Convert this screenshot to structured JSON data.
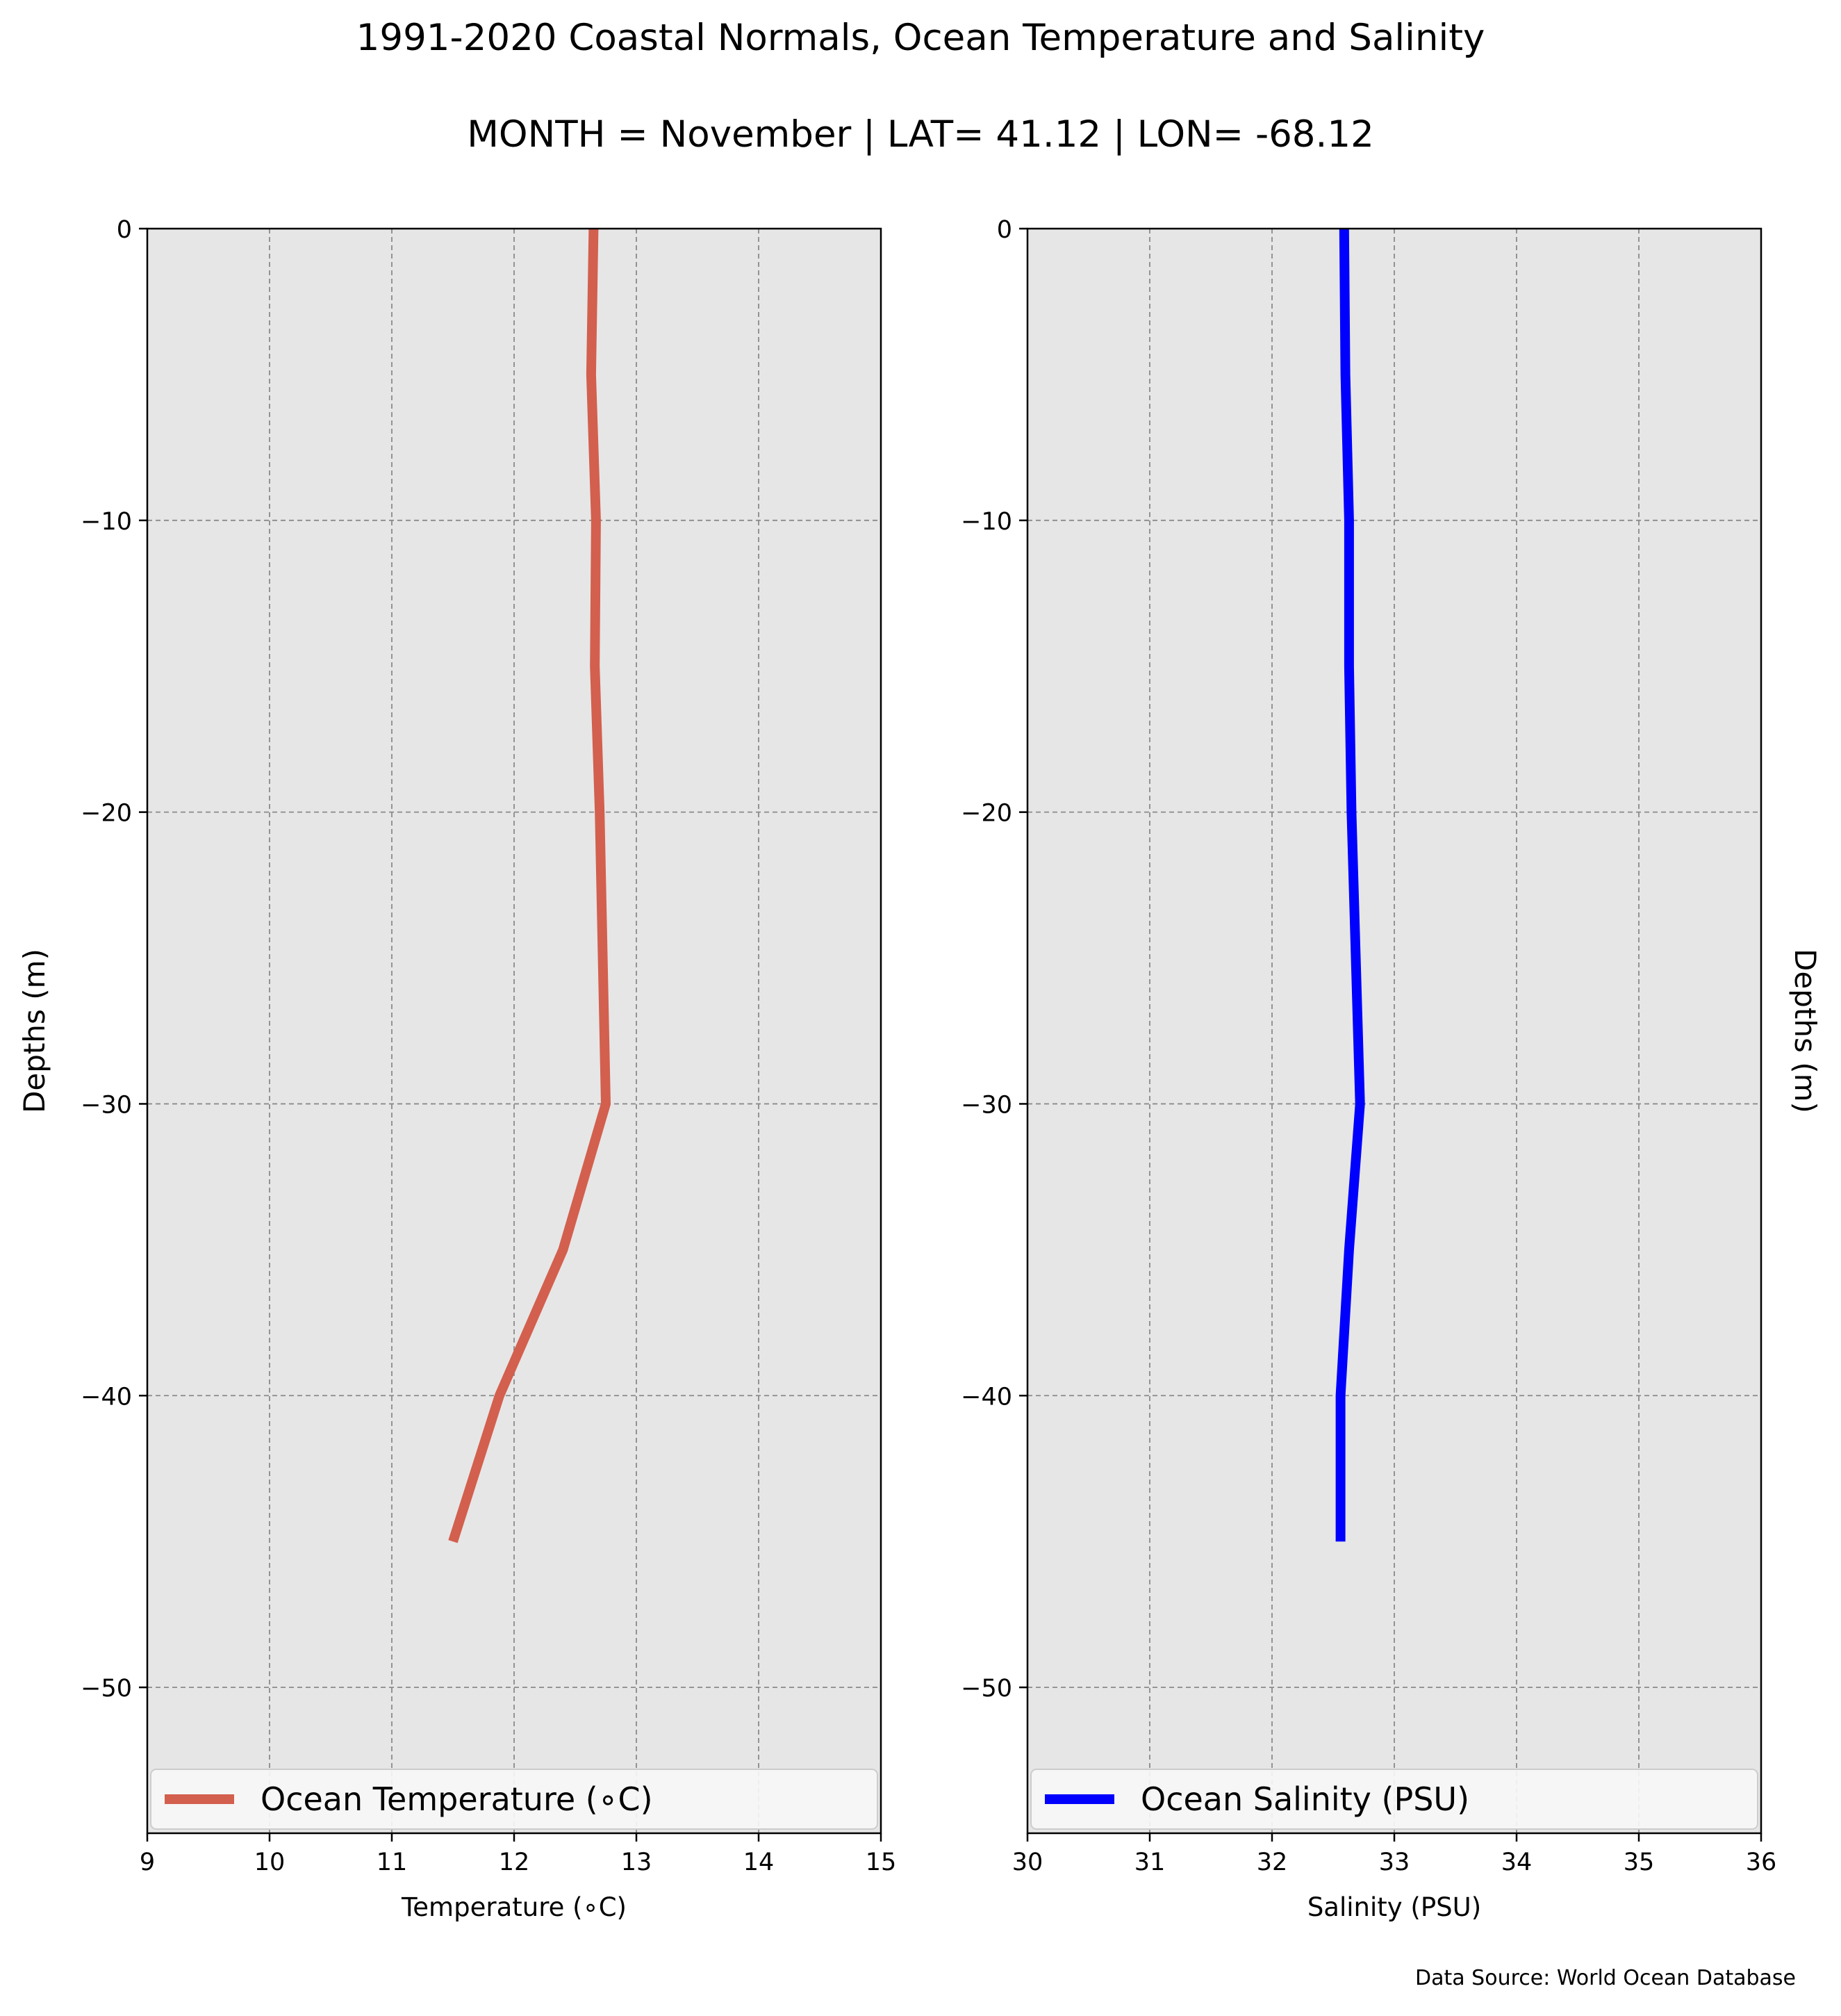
{
  "figure": {
    "title": "1991-2020 Coastal Normals, Ocean Temperature and Salinity",
    "subtitle": "MONTH = November | LAT= 41.12 | LON= -68.12",
    "source": "Data Source: World Ocean Database"
  },
  "chart_data": [
    {
      "type": "line",
      "xlabel": "Temperature ($^\\circ$C)",
      "xlabel_display": "Temperature (∘C)",
      "ylabel": "Depths (m)",
      "xlim": [
        9,
        15
      ],
      "ylim": [
        -55,
        0
      ],
      "xticks": [
        9,
        10,
        11,
        12,
        13,
        14,
        15
      ],
      "xtick_labels": [
        "9",
        "10",
        "11",
        "12",
        "13",
        "14",
        "15"
      ],
      "yticks": [
        0,
        -10,
        -20,
        -30,
        -40,
        -50
      ],
      "ytick_labels": [
        "0",
        "−10",
        "−20",
        "−30",
        "−40",
        "−50"
      ],
      "grid": true,
      "legend_position": "lower center",
      "background": "#e6e6e6",
      "series": [
        {
          "name": "Ocean Temperature (∘C)",
          "color": "#d35f4e",
          "x": [
            12.65,
            12.63,
            12.67,
            12.66,
            12.7,
            12.75,
            12.4,
            11.88,
            11.5
          ],
          "y": [
            0,
            -5,
            -10,
            -15,
            -20,
            -30,
            -35,
            -40,
            -45
          ]
        }
      ]
    },
    {
      "type": "line",
      "xlabel": "Salinity (PSU)",
      "ylabel": "Depths (m)",
      "ylabel_position": "right",
      "xlim": [
        30,
        36
      ],
      "ylim": [
        -55,
        0
      ],
      "xticks": [
        30,
        31,
        32,
        33,
        34,
        35,
        36
      ],
      "xtick_labels": [
        "30",
        "31",
        "32",
        "33",
        "34",
        "35",
        "36"
      ],
      "yticks": [
        0,
        -10,
        -20,
        -30,
        -40,
        -50
      ],
      "ytick_labels": [
        "0",
        "−10",
        "−20",
        "−30",
        "−40",
        "−50"
      ],
      "grid": true,
      "legend_position": "lower center",
      "background": "#e6e6e6",
      "series": [
        {
          "name": "Ocean Salinity (PSU)",
          "color": "#0000ff",
          "x": [
            32.59,
            32.6,
            32.63,
            32.63,
            32.65,
            32.72,
            32.63,
            32.56,
            32.56
          ],
          "y": [
            0,
            -5,
            -10,
            -15,
            -20,
            -30,
            -35,
            -40,
            -45
          ]
        }
      ]
    }
  ]
}
